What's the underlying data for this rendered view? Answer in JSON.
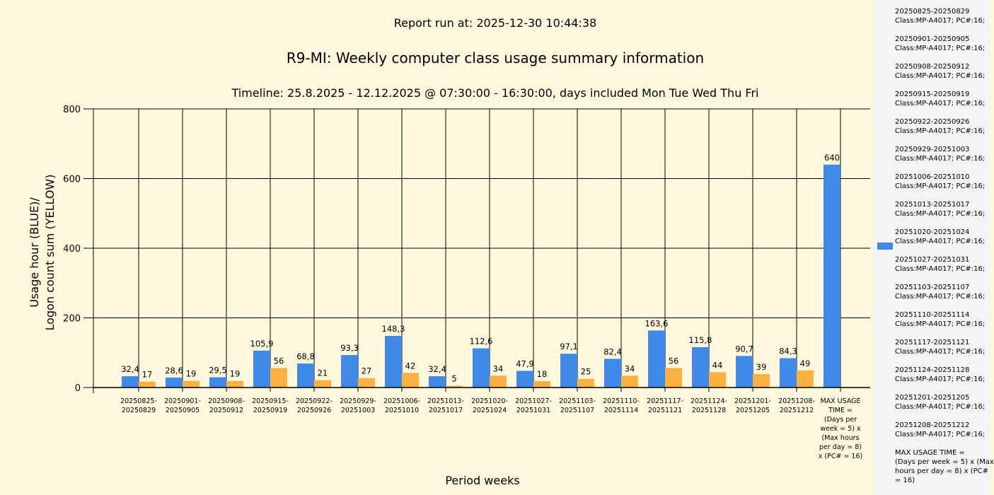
{
  "header": {
    "run_at": "Report run at: 2025-12-30 10:44:38",
    "title": "R9-MI: Weekly computer class usage summary information",
    "timeline": "Timeline:  25.8.2025  - 12.12.2025  @  07:30:00 -  16:30:00, days included Mon Tue Wed Thu Fri"
  },
  "chart_data": {
    "type": "bar",
    "title": "R9-MI: Weekly computer class usage summary information",
    "xlabel": "Period weeks",
    "ylabel_line1": "Usage hour (BLUE)/",
    "ylabel_line2": "Logon count sum (YELLOW)",
    "ylim": [
      0,
      800
    ],
    "yticks": [
      "0",
      "200",
      "400",
      "600",
      "800"
    ],
    "grid": true,
    "categories": [
      "20250825-\n20250829",
      "20250901-\n20250905",
      "20250908-\n20250912",
      "20250915-\n20250919",
      "20250922-\n20250926",
      "20250929-\n20251003",
      "20251006-\n20251010",
      "20251013-\n20251017",
      "20251020-\n20251024",
      "20251027-\n20251031",
      "20251103-\n20251107",
      "20251110-\n20251114",
      "20251117-\n20251121",
      "20251124-\n20251128",
      "20251201-\n20251205",
      "20251208-\n20251212",
      "MAX USAGE\nTIME =\n(Days per\nweek = 5) x\n(Max hours\nper day = 8)\nx (PC# = 16)"
    ],
    "series": [
      {
        "name": "Usage hour",
        "color": "#3f8ae9",
        "values": [
          32.4,
          28.6,
          29.5,
          105.9,
          68.8,
          93.3,
          148.3,
          32.4,
          112.6,
          47.9,
          97.1,
          82.4,
          163.6,
          115.8,
          90.7,
          84.3,
          640
        ],
        "labels": [
          "32,4",
          "28,6",
          "29,5",
          "105,9",
          "68,8",
          "93,3",
          "148,3",
          "32,4",
          "112,6",
          "47,9",
          "97,1",
          "82,4",
          "163,6",
          "115,8",
          "90,7",
          "84,3",
          "640"
        ]
      },
      {
        "name": "Logon count sum",
        "color": "#fbb040",
        "values": [
          17,
          19,
          19,
          56,
          21,
          27,
          42,
          5,
          34,
          18,
          25,
          34,
          56,
          44,
          39,
          49,
          null
        ],
        "labels": [
          "17",
          "19",
          "19",
          "56",
          "21",
          "27",
          "42",
          "5",
          "34",
          "18",
          "25",
          "34",
          "56",
          "44",
          "39",
          "49",
          null
        ]
      }
    ],
    "legend_position": "right"
  },
  "legend": {
    "items": [
      [
        "20250825-20250829",
        "Class:MP-A4017; PC#:16;"
      ],
      [
        "20250901-20250905",
        "Class:MP-A4017; PC#:16;"
      ],
      [
        "20250908-20250912",
        "Class:MP-A4017; PC#:16;"
      ],
      [
        "20250915-20250919",
        "Class:MP-A4017; PC#:16;"
      ],
      [
        "20250922-20250926",
        "Class:MP-A4017; PC#:16;"
      ],
      [
        "20250929-20251003",
        "Class:MP-A4017; PC#:16;"
      ],
      [
        "20251006-20251010",
        "Class:MP-A4017; PC#:16;"
      ],
      [
        "20251013-20251017",
        "Class:MP-A4017; PC#:16;"
      ],
      [
        "20251020-20251024",
        "Class:MP-A4017; PC#:16;"
      ],
      [
        "20251027-20251031",
        "Class:MP-A4017; PC#:16;"
      ],
      [
        "20251103-20251107",
        "Class:MP-A4017; PC#:16;"
      ],
      [
        "20251110-20251114",
        "Class:MP-A4017; PC#:16;"
      ],
      [
        "20251117-20251121",
        "Class:MP-A4017; PC#:16;"
      ],
      [
        "20251124-20251128",
        "Class:MP-A4017; PC#:16;"
      ],
      [
        "20251201-20251205",
        "Class:MP-A4017; PC#:16;"
      ],
      [
        "20251208-20251212",
        "Class:MP-A4017; PC#:16;"
      ],
      [
        "MAX USAGE TIME =",
        "(Days per week = 5) x (Max",
        "hours per day = 8) x (PC#",
        "= 16)"
      ]
    ]
  }
}
